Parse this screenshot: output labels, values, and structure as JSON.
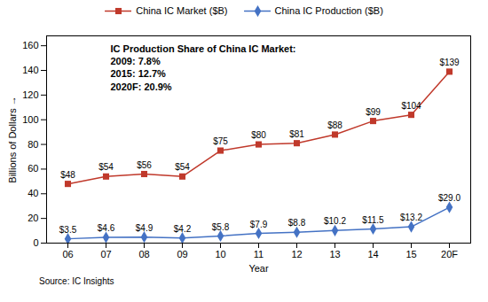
{
  "chart_data": {
    "type": "line",
    "categories": [
      "06",
      "07",
      "08",
      "09",
      "10",
      "11",
      "12",
      "13",
      "14",
      "15",
      "20F"
    ],
    "series": [
      {
        "name": "China IC Market ($B)",
        "color": "#C0392B",
        "marker": "square",
        "values": [
          48,
          54,
          56,
          54,
          75,
          80,
          81,
          88,
          99,
          104,
          139
        ],
        "value_labels": [
          "$48",
          "$54",
          "$56",
          "$54",
          "$75",
          "$80",
          "$81",
          "$88",
          "$99",
          "$104",
          "$139"
        ]
      },
      {
        "name": "China IC Production ($B)",
        "color": "#4472C4",
        "marker": "diamond",
        "values": [
          3.5,
          4.6,
          4.9,
          4.2,
          5.8,
          7.9,
          8.8,
          10.2,
          11.5,
          13.2,
          29.0
        ],
        "value_labels": [
          "$3.5",
          "$4.6",
          "$4.9",
          "$4.2",
          "$5.8",
          "$7.9",
          "$8.8",
          "$10.2",
          "$11.5",
          "$13.2",
          "$29.0"
        ]
      }
    ],
    "xlabel": "Year",
    "ylabel": "Billions of Dollars",
    "ylim": [
      0,
      168
    ],
    "yticks": [
      0,
      20,
      40,
      60,
      80,
      100,
      120,
      140,
      160
    ],
    "annotations": [
      "IC Production Share of China IC Market:",
      "2009: 7.8%",
      "2015: 12.7%",
      "2020F: 20.9%"
    ],
    "caption": "Source: IC Insights",
    "legend": "top",
    "data_labels": true,
    "grid": false
  }
}
